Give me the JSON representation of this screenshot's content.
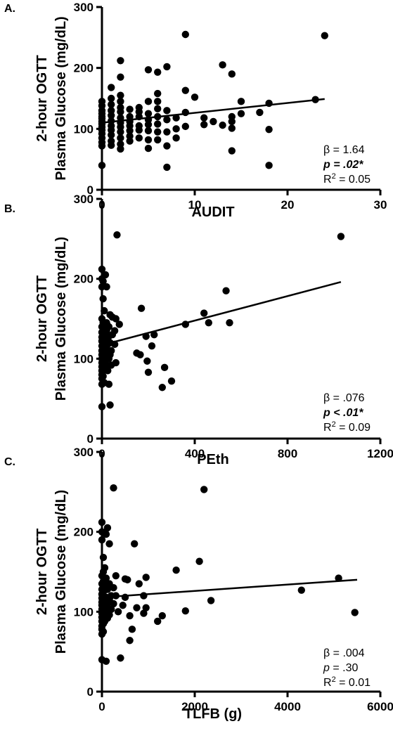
{
  "chart_data": [
    {
      "type": "scatter",
      "panel": "A.",
      "xlabel": "AUDIT",
      "ylabel_line1": "2-hour  OGTT",
      "ylabel_line2": "Plasma Glucose (mg/dL)",
      "xlim": [
        0,
        30
      ],
      "ylim": [
        0,
        300
      ],
      "xticks": [
        0,
        10,
        20,
        30
      ],
      "yticks": [
        0,
        100,
        200,
        300
      ],
      "fit_line": {
        "x": [
          0,
          24
        ],
        "y": [
          110,
          149
        ]
      },
      "stats": {
        "beta": "β = 1.64",
        "p_prefix": "",
        "p": "p = .02*",
        "r2_main": "R",
        "r2_sup": "2",
        "r2_rest": " = 0.05",
        "p_bold": true
      },
      "points": [
        [
          0,
          145
        ],
        [
          0,
          138
        ],
        [
          0,
          130
        ],
        [
          0,
          125
        ],
        [
          0,
          120
        ],
        [
          0,
          117
        ],
        [
          0,
          112
        ],
        [
          0,
          108
        ],
        [
          0,
          103
        ],
        [
          0,
          98
        ],
        [
          0,
          92
        ],
        [
          0,
          85
        ],
        [
          0,
          78
        ],
        [
          0,
          72
        ],
        [
          0,
          40
        ],
        [
          1,
          168
        ],
        [
          1,
          150
        ],
        [
          1,
          140
        ],
        [
          1,
          130
        ],
        [
          1,
          122
        ],
        [
          1,
          113
        ],
        [
          1,
          105
        ],
        [
          1,
          98
        ],
        [
          1,
          90
        ],
        [
          1,
          80
        ],
        [
          1,
          73
        ],
        [
          2,
          212
        ],
        [
          2,
          185
        ],
        [
          2,
          155
        ],
        [
          2,
          145
        ],
        [
          2,
          135
        ],
        [
          2,
          128
        ],
        [
          2,
          118
        ],
        [
          2,
          110
        ],
        [
          2,
          103
        ],
        [
          2,
          95
        ],
        [
          2,
          85
        ],
        [
          2,
          75
        ],
        [
          2,
          67
        ],
        [
          3,
          132
        ],
        [
          3,
          120
        ],
        [
          3,
          112
        ],
        [
          3,
          105
        ],
        [
          3,
          97
        ],
        [
          3,
          88
        ],
        [
          3,
          80
        ],
        [
          4,
          135
        ],
        [
          4,
          128
        ],
        [
          4,
          120
        ],
        [
          4,
          105
        ],
        [
          4,
          98
        ],
        [
          4,
          85
        ],
        [
          5,
          197
        ],
        [
          5,
          145
        ],
        [
          5,
          125
        ],
        [
          5,
          115
        ],
        [
          5,
          107
        ],
        [
          5,
          97
        ],
        [
          5,
          82
        ],
        [
          5,
          68
        ],
        [
          6,
          193
        ],
        [
          6,
          158
        ],
        [
          6,
          145
        ],
        [
          6,
          133
        ],
        [
          6,
          120
        ],
        [
          6,
          108
        ],
        [
          6,
          95
        ],
        [
          6,
          82
        ],
        [
          7,
          202
        ],
        [
          7,
          130
        ],
        [
          7,
          115
        ],
        [
          7,
          95
        ],
        [
          7,
          72
        ],
        [
          7,
          37
        ],
        [
          8,
          118
        ],
        [
          8,
          100
        ],
        [
          8,
          85
        ],
        [
          9,
          255
        ],
        [
          9,
          163
        ],
        [
          9,
          127
        ],
        [
          9,
          104
        ],
        [
          10,
          152
        ],
        [
          11,
          118
        ],
        [
          11,
          107
        ],
        [
          12,
          112
        ],
        [
          13,
          205
        ],
        [
          13,
          106
        ],
        [
          14,
          190
        ],
        [
          14,
          120
        ],
        [
          14,
          112
        ],
        [
          14,
          101
        ],
        [
          14,
          64
        ],
        [
          15,
          145
        ],
        [
          15,
          125
        ],
        [
          17,
          127
        ],
        [
          18,
          142
        ],
        [
          18,
          99
        ],
        [
          18,
          40
        ],
        [
          23,
          148
        ],
        [
          24,
          253
        ]
      ]
    },
    {
      "type": "scatter",
      "panel": "B.",
      "xlabel": "PEth",
      "ylabel_line1": "2-hour OGTT",
      "ylabel_line2": "Plasma Glucose (mg/dL)",
      "xlim": [
        0,
        1200
      ],
      "ylim": [
        0,
        300
      ],
      "xticks": [
        0,
        400,
        800,
        1200
      ],
      "yticks": [
        0,
        100,
        200,
        300
      ],
      "fit_line": {
        "x": [
          0,
          1030
        ],
        "y": [
          117,
          196
        ]
      },
      "stats": {
        "beta": "β = .076",
        "p": "p < .01*",
        "r2_main": "R",
        "r2_sup": "2",
        "r2_rest": " = 0.09",
        "p_bold": true
      },
      "points": [
        [
          0,
          212
        ],
        [
          0,
          200
        ],
        [
          0,
          190
        ],
        [
          0,
          150
        ],
        [
          0,
          140
        ],
        [
          0,
          133
        ],
        [
          0,
          127
        ],
        [
          0,
          122
        ],
        [
          0,
          116
        ],
        [
          0,
          110
        ],
        [
          0,
          105
        ],
        [
          0,
          100
        ],
        [
          0,
          95
        ],
        [
          0,
          90
        ],
        [
          0,
          85
        ],
        [
          0,
          80
        ],
        [
          0,
          75
        ],
        [
          0,
          68
        ],
        [
          0,
          40
        ],
        [
          5,
          197
        ],
        [
          5,
          175
        ],
        [
          5,
          145
        ],
        [
          5,
          130
        ],
        [
          5,
          120
        ],
        [
          5,
          112
        ],
        [
          5,
          104
        ],
        [
          5,
          98
        ],
        [
          5,
          92
        ],
        [
          5,
          85
        ],
        [
          5,
          78
        ],
        [
          10,
          160
        ],
        [
          10,
          138
        ],
        [
          10,
          118
        ],
        [
          10,
          102
        ],
        [
          10,
          95
        ],
        [
          10,
          88
        ],
        [
          10,
          70
        ],
        [
          15,
          205
        ],
        [
          15,
          125
        ],
        [
          15,
          108
        ],
        [
          15,
          98
        ],
        [
          20,
          190
        ],
        [
          20,
          145
        ],
        [
          20,
          135
        ],
        [
          20,
          112
        ],
        [
          20,
          92
        ],
        [
          25,
          118
        ],
        [
          25,
          105
        ],
        [
          25,
          85
        ],
        [
          30,
          140
        ],
        [
          30,
          128
        ],
        [
          30,
          100
        ],
        [
          30,
          68
        ],
        [
          35,
          155
        ],
        [
          35,
          120
        ],
        [
          35,
          105
        ],
        [
          35,
          42
        ],
        [
          40,
          110
        ],
        [
          40,
          92
        ],
        [
          45,
          152
        ],
        [
          45,
          130
        ],
        [
          55,
          135
        ],
        [
          55,
          118
        ],
        [
          60,
          150
        ],
        [
          60,
          95
        ],
        [
          65,
          255
        ],
        [
          75,
          143
        ],
        [
          150,
          107
        ],
        [
          165,
          105
        ],
        [
          170,
          163
        ],
        [
          190,
          128
        ],
        [
          195,
          97
        ],
        [
          200,
          83
        ],
        [
          215,
          116
        ],
        [
          225,
          130
        ],
        [
          260,
          64
        ],
        [
          270,
          89
        ],
        [
          300,
          72
        ],
        [
          360,
          143
        ],
        [
          440,
          157
        ],
        [
          460,
          145
        ],
        [
          535,
          185
        ],
        [
          550,
          145
        ],
        [
          1030,
          253
        ]
      ]
    },
    {
      "type": "scatter",
      "panel": "C.",
      "xlabel": "TLFB (g)",
      "ylabel_line1": "2-hour OGTT",
      "ylabel_line2": "Plasma Glucose (mg/dL)",
      "xlim": [
        0,
        6000
      ],
      "ylim": [
        0,
        300
      ],
      "xticks": [
        0,
        2000,
        4000,
        6000
      ],
      "yticks": [
        0,
        100,
        200,
        300
      ],
      "fit_line": {
        "x": [
          0,
          5500
        ],
        "y": [
          118,
          140
        ]
      },
      "stats": {
        "beta": "β = .004",
        "p": "p = .30",
        "r2_main": "R",
        "r2_sup": "2",
        "r2_rest": " = 0.01",
        "p_bold": false
      },
      "points": [
        [
          0,
          212
        ],
        [
          0,
          200
        ],
        [
          0,
          190
        ],
        [
          0,
          145
        ],
        [
          0,
          135
        ],
        [
          0,
          128
        ],
        [
          0,
          122
        ],
        [
          0,
          117
        ],
        [
          0,
          112
        ],
        [
          0,
          108
        ],
        [
          0,
          103
        ],
        [
          0,
          98
        ],
        [
          0,
          93
        ],
        [
          0,
          88
        ],
        [
          0,
          82
        ],
        [
          0,
          78
        ],
        [
          0,
          72
        ],
        [
          0,
          40
        ],
        [
          30,
          168
        ],
        [
          30,
          150
        ],
        [
          30,
          138
        ],
        [
          30,
          125
        ],
        [
          30,
          115
        ],
        [
          30,
          105
        ],
        [
          30,
          95
        ],
        [
          30,
          85
        ],
        [
          30,
          75
        ],
        [
          60,
          155
        ],
        [
          60,
          132
        ],
        [
          60,
          112
        ],
        [
          60,
          100
        ],
        [
          60,
          88
        ],
        [
          90,
          197
        ],
        [
          90,
          142
        ],
        [
          90,
          118
        ],
        [
          90,
          103
        ],
        [
          90,
          38
        ],
        [
          120,
          205
        ],
        [
          120,
          128
        ],
        [
          120,
          110
        ],
        [
          120,
          92
        ],
        [
          160,
          185
        ],
        [
          160,
          135
        ],
        [
          160,
          115
        ],
        [
          160,
          96
        ],
        [
          200,
          120
        ],
        [
          200,
          103
        ],
        [
          250,
          255
        ],
        [
          250,
          130
        ],
        [
          250,
          110
        ],
        [
          300,
          145
        ],
        [
          300,
          120
        ],
        [
          350,
          100
        ],
        [
          400,
          42
        ],
        [
          450,
          108
        ],
        [
          500,
          141
        ],
        [
          500,
          118
        ],
        [
          550,
          140
        ],
        [
          600,
          95
        ],
        [
          600,
          64
        ],
        [
          650,
          78
        ],
        [
          700,
          185
        ],
        [
          750,
          105
        ],
        [
          800,
          135
        ],
        [
          900,
          120
        ],
        [
          900,
          98
        ],
        [
          950,
          143
        ],
        [
          950,
          105
        ],
        [
          1200,
          88
        ],
        [
          1300,
          95
        ],
        [
          1600,
          152
        ],
        [
          1800,
          101
        ],
        [
          2100,
          163
        ],
        [
          2200,
          253
        ],
        [
          2350,
          114
        ],
        [
          4300,
          127
        ],
        [
          5100,
          142
        ],
        [
          5450,
          99
        ]
      ]
    }
  ]
}
